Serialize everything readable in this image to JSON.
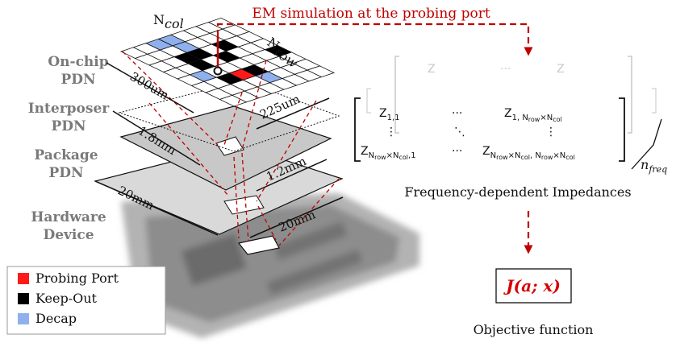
{
  "em_label": "EM simulation at the probing port",
  "layers": {
    "onchip": [
      "On-chip",
      "PDN"
    ],
    "interposer": [
      "Interposer",
      "PDN"
    ],
    "package": [
      "Package",
      "PDN"
    ],
    "hardware": [
      "Hardware",
      "Device"
    ]
  },
  "dimensions": {
    "onchip_w": "300um",
    "onchip_h": "225um",
    "interposer": "1.8mm",
    "package_1": "1.2mm",
    "package_w": "20mm",
    "package_h": "20mm"
  },
  "axes": {
    "ncol": "N",
    "ncol_sub": "col",
    "nrow": "N",
    "nrow_sub": "row"
  },
  "matrix": {
    "z11": "Z",
    "z11_sub": "1,1",
    "z1n": "Z",
    "z1n_sub": "1, N",
    "z1n_sub2": "row",
    "z1n_sub3": "×N",
    "z1n_sub4": "col",
    "zn1": "Z",
    "zn1_sub": "N",
    "zn1_sub2": "row",
    "zn1_sub3": "×N",
    "zn1_sub4": "col",
    "zn1_sub5": ",1",
    "znn": "Z",
    "znn_sub": "N",
    "znn_sub2": "row",
    "znn_sub3": "×N",
    "znn_sub4": "col",
    "znn_sub5": ", N",
    "znn_sub6": "row",
    "znn_sub7": "×N",
    "znn_sub8": "col",
    "dots_h": "···",
    "dots_v": "⋮",
    "dots_d": "⋱",
    "nfreq": "n",
    "nfreq_sub": "freq"
  },
  "caption_freq": "Frequency-dependent Impedances",
  "objective": {
    "j": "J",
    "args": "(a; x)"
  },
  "caption_objective": "Objective function",
  "legend": [
    {
      "label": "Probing Port",
      "color": "#ff1a1a"
    },
    {
      "label": "Keep-Out",
      "color": "#000000"
    },
    {
      "label": "Decap",
      "color": "#8fb0ec"
    }
  ],
  "grid": [
    [
      "#ffffff",
      "#ffffff",
      "#8fb0ec",
      "#8fb0ec",
      "#ffffff",
      "#ffffff",
      "#ffffff",
      "#ffffff"
    ],
    [
      "#ffffff",
      "#ffffff",
      "#ffffff",
      "#8fb0ec",
      "#ffffff",
      "#ffffff",
      "#ffffff",
      "#ffffff"
    ],
    [
      "#ffffff",
      "#ffffff",
      "#000000",
      "#000000",
      "#ffffff",
      "#000000",
      "#ffffff",
      "#ffffff"
    ],
    [
      "#ffffff",
      "#ffffff",
      "#000000",
      "#ffffff",
      "#000000",
      "#ffffff",
      "#ffffff",
      "#ffffff"
    ],
    [
      "#ffffff",
      "#8fb0ec",
      "#ffffff",
      "#ffffff",
      "#ffffff",
      "#ffffff",
      "#ffffff",
      "#000000"
    ],
    [
      "#ffffff",
      "#ffffff",
      "#000000",
      "#ff1a1a",
      "#000000",
      "#ffffff",
      "#ffffff",
      "#ffffff"
    ],
    [
      "#ffffff",
      "#ffffff",
      "#ffffff",
      "#ffffff",
      "#8fb0ec",
      "#ffffff",
      "#ffffff",
      "#ffffff"
    ],
    [
      "#ffffff",
      "#ffffff",
      "#ffffff",
      "#ffffff",
      "#ffffff",
      "#ffffff",
      "#ffffff",
      "#ffffff"
    ]
  ]
}
